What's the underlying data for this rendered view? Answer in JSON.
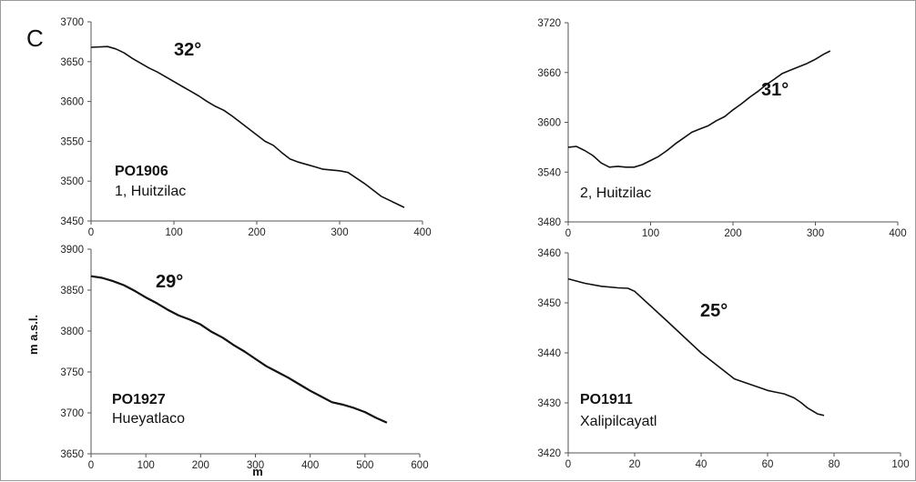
{
  "figure": {
    "panel_letter": "C",
    "ylabel": "m a.s.l.",
    "xlabel": "m"
  },
  "chart_data": [
    {
      "type": "line",
      "code": "PO1906",
      "site": "1, Huitzilac",
      "angle_label": "32°",
      "xlim": [
        0,
        400
      ],
      "ylim": [
        3450,
        3700
      ],
      "xticks": [
        0,
        100,
        200,
        300,
        400
      ],
      "yticks": [
        3450,
        3500,
        3550,
        3600,
        3650,
        3700
      ],
      "series": [
        {
          "x": [
            0,
            20,
            30,
            40,
            50,
            60,
            70,
            80,
            90,
            100,
            110,
            120,
            130,
            140,
            150,
            160,
            170,
            180,
            190,
            200,
            210,
            220,
            230,
            240,
            250,
            260,
            270,
            280,
            290,
            300,
            310,
            320,
            330,
            340,
            350,
            360,
            370,
            378
          ],
          "y": [
            3668,
            3669,
            3666,
            3661,
            3654,
            3648,
            3642,
            3637,
            3631,
            3625,
            3619,
            3613,
            3607,
            3600,
            3594,
            3589,
            3582,
            3574,
            3566,
            3558,
            3550,
            3545,
            3536,
            3528,
            3524,
            3521,
            3518,
            3515,
            3514,
            3513,
            3511,
            3504,
            3497,
            3489,
            3481,
            3476,
            3471,
            3467
          ]
        }
      ]
    },
    {
      "type": "line",
      "code": "",
      "site": "2, Huitzilac",
      "angle_label": "31°",
      "xlim": [
        0,
        400
      ],
      "ylim": [
        3480,
        3720
      ],
      "xticks": [
        0,
        100,
        200,
        300,
        400
      ],
      "yticks": [
        3480,
        3540,
        3600,
        3660,
        3720
      ],
      "series": [
        {
          "x": [
            0,
            10,
            20,
            30,
            40,
            50,
            60,
            70,
            80,
            90,
            100,
            110,
            120,
            130,
            140,
            150,
            160,
            170,
            180,
            190,
            200,
            210,
            220,
            230,
            240,
            250,
            260,
            270,
            280,
            290,
            300,
            310,
            318
          ],
          "y": [
            3570,
            3571,
            3566,
            3560,
            3551,
            3546,
            3547,
            3546,
            3546,
            3549,
            3554,
            3559,
            3566,
            3574,
            3581,
            3588,
            3592,
            3596,
            3602,
            3607,
            3615,
            3622,
            3630,
            3637,
            3645,
            3652,
            3659,
            3663,
            3667,
            3671,
            3676,
            3682,
            3686
          ]
        }
      ]
    },
    {
      "type": "line",
      "code": "PO1927",
      "site": "Hueyatlaco",
      "angle_label": "29°",
      "xlim": [
        0,
        600
      ],
      "ylim": [
        3650,
        3900
      ],
      "xticks": [
        0,
        100,
        200,
        300,
        400,
        500,
        600
      ],
      "yticks": [
        3650,
        3700,
        3750,
        3800,
        3850,
        3900
      ],
      "series": [
        {
          "x": [
            0,
            20,
            40,
            60,
            80,
            100,
            120,
            140,
            160,
            180,
            200,
            220,
            240,
            260,
            280,
            300,
            320,
            340,
            360,
            380,
            400,
            420,
            440,
            460,
            480,
            500,
            520,
            540
          ],
          "y": [
            3867,
            3865,
            3861,
            3856,
            3849,
            3841,
            3834,
            3826,
            3819,
            3814,
            3808,
            3799,
            3792,
            3783,
            3775,
            3766,
            3757,
            3750,
            3743,
            3735,
            3727,
            3720,
            3713,
            3710,
            3706,
            3701,
            3694,
            3688
          ]
        }
      ]
    },
    {
      "type": "line",
      "code": "PO1911",
      "site": "Xalipilcayatl",
      "angle_label": "25°",
      "xlim": [
        0,
        100
      ],
      "ylim": [
        3420,
        3460
      ],
      "xticks": [
        0,
        20,
        40,
        60,
        80,
        100
      ],
      "yticks": [
        3420,
        3430,
        3440,
        3450,
        3460
      ],
      "series": [
        {
          "x": [
            0,
            5,
            10,
            15,
            18,
            20,
            30,
            40,
            50,
            60,
            62,
            65,
            68,
            70,
            72,
            75,
            77
          ],
          "y": [
            3454.8,
            3453.9,
            3453.3,
            3453.0,
            3452.9,
            3452.3,
            3446.2,
            3440.0,
            3434.8,
            3432.5,
            3432.2,
            3431.8,
            3431.0,
            3430.1,
            3429.0,
            3427.8,
            3427.5
          ]
        }
      ]
    }
  ]
}
